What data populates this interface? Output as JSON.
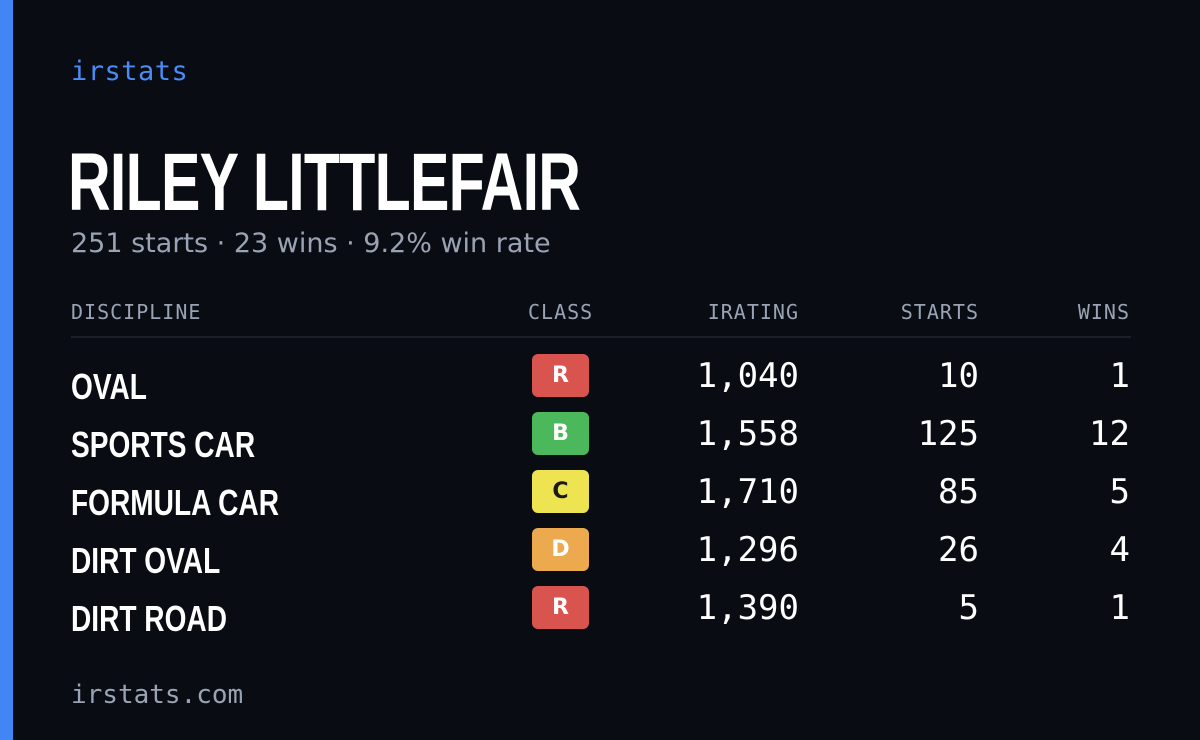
{
  "brand": "irstats",
  "driver": {
    "name": "RILEY LITTLEFAIR",
    "summary": "251 starts · 23 wins · 9.2% win rate"
  },
  "table": {
    "headers": {
      "discipline": "DISCIPLINE",
      "class": "CLASS",
      "irating": "IRATING",
      "starts": "STARTS",
      "wins": "WINS"
    },
    "rows": [
      {
        "discipline": "OVAL",
        "class": "R",
        "class_color": "#d9534f",
        "class_text_color": "#ffffff",
        "irating": "1,040",
        "starts": "10",
        "wins": "1"
      },
      {
        "discipline": "SPORTS CAR",
        "class": "B",
        "class_color": "#4cb85c",
        "class_text_color": "#ffffff",
        "irating": "1,558",
        "starts": "125",
        "wins": "12"
      },
      {
        "discipline": "FORMULA CAR",
        "class": "C",
        "class_color": "#eee350",
        "class_text_color": "#1a1a1a",
        "irating": "1,710",
        "starts": "85",
        "wins": "5"
      },
      {
        "discipline": "DIRT OVAL",
        "class": "D",
        "class_color": "#eda94d",
        "class_text_color": "#ffffff",
        "irating": "1,296",
        "starts": "26",
        "wins": "4"
      },
      {
        "discipline": "DIRT ROAD",
        "class": "R",
        "class_color": "#d9534f",
        "class_text_color": "#ffffff",
        "irating": "1,390",
        "starts": "5",
        "wins": "1"
      }
    ]
  },
  "footer": "irstats.com",
  "colors": {
    "background": "#0a0c13",
    "accent": "#4285f4",
    "muted_text": "#9aa3b4"
  }
}
